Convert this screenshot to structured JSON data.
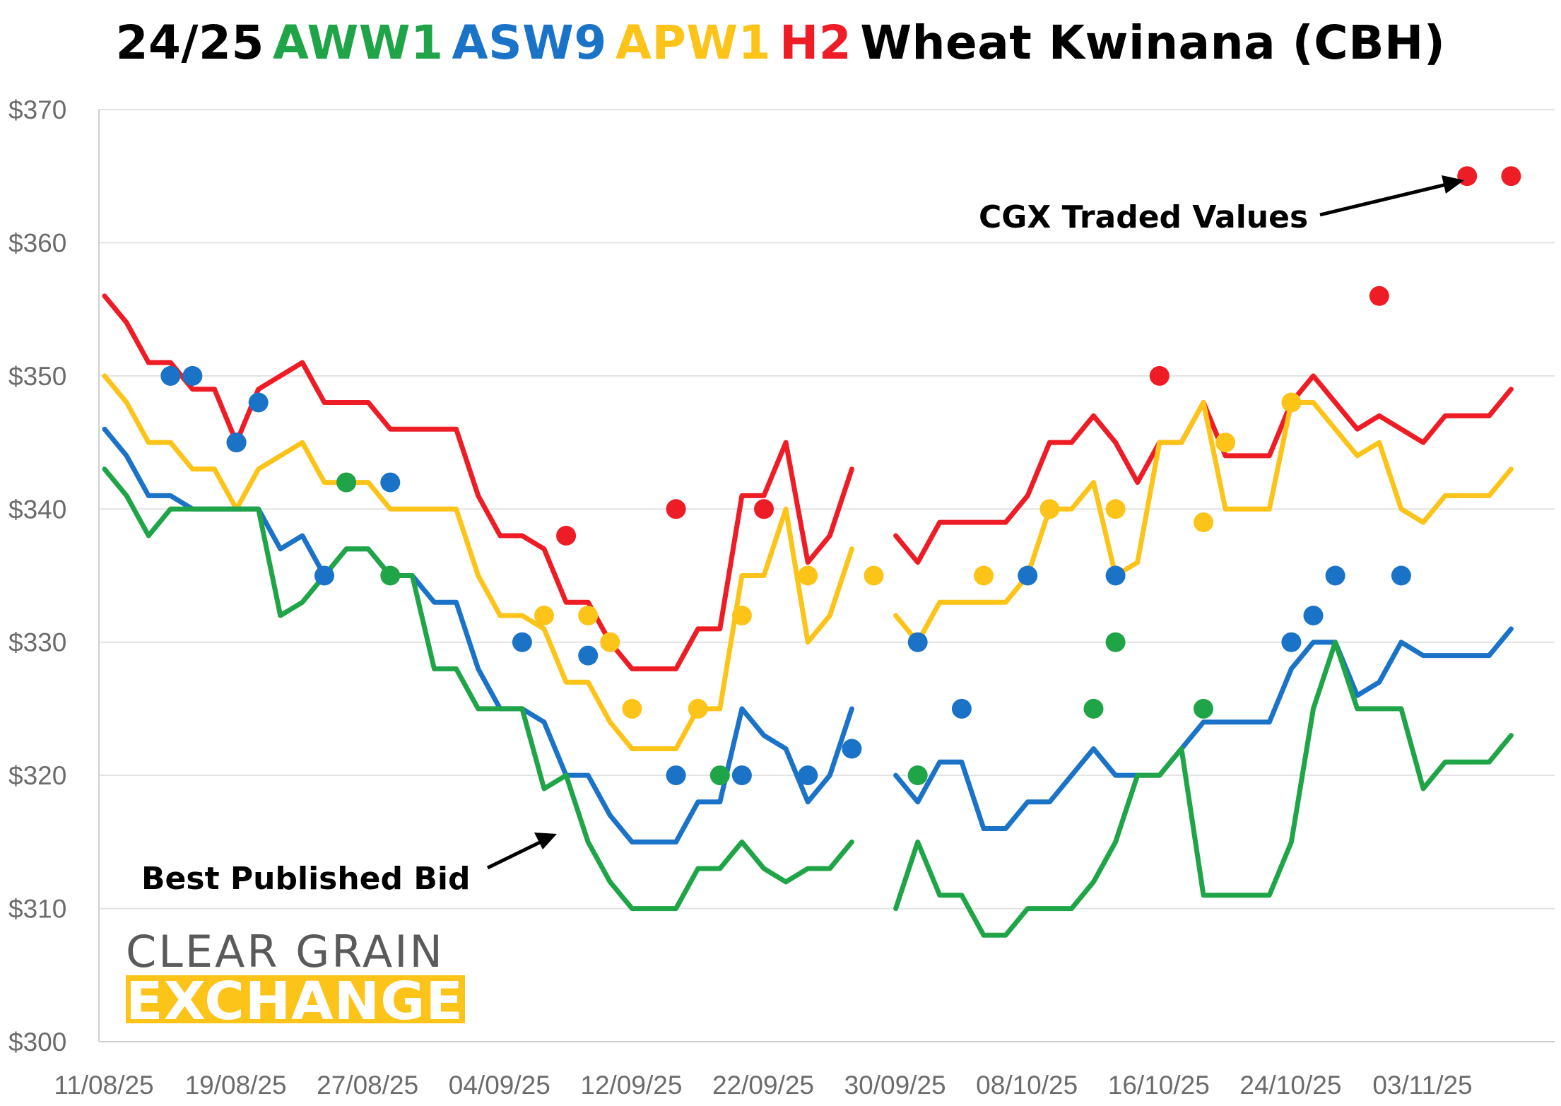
{
  "title": {
    "parts": [
      {
        "text": "24/25",
        "color": "#000000"
      },
      {
        "text": "AWW1",
        "color": "#1fa548"
      },
      {
        "text": "ASW9",
        "color": "#1b73c8"
      },
      {
        "text": "APW1",
        "color": "#fcc419"
      },
      {
        "text": "H2",
        "color": "#ee1c25"
      },
      {
        "text": "Wheat Kwinana (CBH)",
        "color": "#000000"
      }
    ]
  },
  "annotations": {
    "cgx": "CGX Traded Values",
    "bid": "Best Published Bid"
  },
  "logo": {
    "line1": "CLEAR GRAIN",
    "line2": "EXCHANGE",
    "accent": "#fcc419"
  },
  "chart_data": {
    "type": "line",
    "x_tick_labels": [
      "11/08/25",
      "19/08/25",
      "27/08/25",
      "04/09/25",
      "12/09/25",
      "22/09/25",
      "30/09/25",
      "08/10/25",
      "16/10/25",
      "24/10/25",
      "03/11/25"
    ],
    "y_tick_labels": [
      "$300",
      "$310",
      "$320",
      "$330",
      "$340",
      "$350",
      "$360",
      "$370"
    ],
    "ylim": [
      300,
      370
    ],
    "grid": true,
    "note_x": "x values are trading-day indices; tick labels fall on indices 0,6,12,18,24,30,36,42,48,54,60",
    "series": [
      {
        "color": "#ee1c25",
        "line": [
          [
            0,
            356
          ],
          [
            1,
            354
          ],
          [
            2,
            351
          ],
          [
            3,
            351
          ],
          [
            4,
            349
          ],
          [
            5,
            349
          ],
          [
            6,
            345
          ],
          [
            7,
            349
          ],
          [
            8,
            350
          ],
          [
            9,
            351
          ],
          [
            10,
            348
          ],
          [
            11,
            348
          ],
          [
            12,
            348
          ],
          [
            13,
            346
          ],
          [
            14,
            346
          ],
          [
            15,
            346
          ],
          [
            16,
            346
          ],
          [
            17,
            341
          ],
          [
            18,
            338
          ],
          [
            19,
            338
          ],
          [
            20,
            337
          ],
          [
            21,
            333
          ],
          [
            22,
            333
          ],
          [
            23,
            330
          ],
          [
            24,
            328
          ],
          [
            25,
            328
          ],
          [
            26,
            328
          ],
          [
            27,
            331
          ],
          [
            28,
            331
          ],
          [
            29,
            341
          ],
          [
            30,
            341
          ],
          [
            31,
            345
          ],
          [
            32,
            336
          ],
          [
            33,
            338
          ],
          [
            34,
            343
          ],
          [
            null,
            null
          ],
          [
            36,
            338
          ],
          [
            37,
            336
          ],
          [
            38,
            339
          ],
          [
            39,
            339
          ],
          [
            40,
            339
          ],
          [
            41,
            339
          ],
          [
            42,
            341
          ],
          [
            43,
            345
          ],
          [
            44,
            345
          ],
          [
            45,
            347
          ],
          [
            46,
            345
          ],
          [
            47,
            342
          ],
          [
            48,
            345
          ],
          [
            49,
            345
          ],
          [
            50,
            348
          ],
          [
            51,
            344
          ],
          [
            52,
            344
          ],
          [
            53,
            344
          ],
          [
            54,
            348
          ],
          [
            55,
            350
          ],
          [
            56,
            348
          ],
          [
            57,
            346
          ],
          [
            58,
            347
          ],
          [
            59,
            346
          ],
          [
            60,
            345
          ],
          [
            61,
            347
          ],
          [
            62,
            347
          ],
          [
            63,
            347
          ],
          [
            64,
            349
          ]
        ],
        "dots": [
          [
            6,
            345
          ],
          [
            21,
            338
          ],
          [
            26,
            340
          ],
          [
            30,
            340
          ],
          [
            48,
            350
          ],
          [
            58,
            356
          ],
          [
            62,
            365
          ],
          [
            64,
            365
          ]
        ]
      },
      {
        "color": "#fcc419",
        "line": [
          [
            0,
            350
          ],
          [
            1,
            348
          ],
          [
            2,
            345
          ],
          [
            3,
            345
          ],
          [
            4,
            343
          ],
          [
            5,
            343
          ],
          [
            6,
            340
          ],
          [
            7,
            343
          ],
          [
            8,
            344
          ],
          [
            9,
            345
          ],
          [
            10,
            342
          ],
          [
            11,
            342
          ],
          [
            12,
            342
          ],
          [
            13,
            340
          ],
          [
            14,
            340
          ],
          [
            15,
            340
          ],
          [
            16,
            340
          ],
          [
            17,
            335
          ],
          [
            18,
            332
          ],
          [
            19,
            332
          ],
          [
            20,
            331
          ],
          [
            21,
            327
          ],
          [
            22,
            327
          ],
          [
            23,
            324
          ],
          [
            24,
            322
          ],
          [
            25,
            322
          ],
          [
            26,
            322
          ],
          [
            27,
            325
          ],
          [
            28,
            325
          ],
          [
            29,
            335
          ],
          [
            30,
            335
          ],
          [
            31,
            340
          ],
          [
            32,
            330
          ],
          [
            33,
            332
          ],
          [
            34,
            337
          ],
          [
            null,
            null
          ],
          [
            36,
            332
          ],
          [
            37,
            330
          ],
          [
            38,
            333
          ],
          [
            39,
            333
          ],
          [
            40,
            333
          ],
          [
            41,
            333
          ],
          [
            42,
            335
          ],
          [
            43,
            340
          ],
          [
            44,
            340
          ],
          [
            45,
            342
          ],
          [
            46,
            335
          ],
          [
            47,
            336
          ],
          [
            48,
            345
          ],
          [
            49,
            345
          ],
          [
            50,
            348
          ],
          [
            51,
            340
          ],
          [
            52,
            340
          ],
          [
            53,
            340
          ],
          [
            54,
            348
          ],
          [
            55,
            348
          ],
          [
            56,
            346
          ],
          [
            57,
            344
          ],
          [
            58,
            345
          ],
          [
            59,
            340
          ],
          [
            60,
            339
          ],
          [
            61,
            341
          ],
          [
            62,
            341
          ],
          [
            63,
            341
          ],
          [
            64,
            343
          ]
        ],
        "dots": [
          [
            11,
            342
          ],
          [
            20,
            332
          ],
          [
            22,
            332
          ],
          [
            23,
            330
          ],
          [
            24,
            325
          ],
          [
            27,
            325
          ],
          [
            29,
            332
          ],
          [
            32,
            335
          ],
          [
            35,
            335
          ],
          [
            40,
            335
          ],
          [
            43,
            340
          ],
          [
            46,
            340
          ],
          [
            50,
            339
          ],
          [
            51,
            345
          ],
          [
            54,
            348
          ]
        ]
      },
      {
        "color": "#1b73c8",
        "line": [
          [
            0,
            346
          ],
          [
            1,
            344
          ],
          [
            2,
            341
          ],
          [
            3,
            341
          ],
          [
            4,
            340
          ],
          [
            5,
            340
          ],
          [
            6,
            340
          ],
          [
            7,
            340
          ],
          [
            8,
            337
          ],
          [
            9,
            338
          ],
          [
            10,
            335
          ],
          [
            11,
            337
          ],
          [
            12,
            337
          ],
          [
            13,
            335
          ],
          [
            14,
            335
          ],
          [
            15,
            333
          ],
          [
            16,
            333
          ],
          [
            17,
            328
          ],
          [
            18,
            325
          ],
          [
            19,
            325
          ],
          [
            20,
            324
          ],
          [
            21,
            320
          ],
          [
            22,
            320
          ],
          [
            23,
            317
          ],
          [
            24,
            315
          ],
          [
            25,
            315
          ],
          [
            26,
            315
          ],
          [
            27,
            318
          ],
          [
            28,
            318
          ],
          [
            29,
            325
          ],
          [
            30,
            323
          ],
          [
            31,
            322
          ],
          [
            32,
            318
          ],
          [
            33,
            320
          ],
          [
            34,
            325
          ],
          [
            null,
            null
          ],
          [
            36,
            320
          ],
          [
            37,
            318
          ],
          [
            38,
            321
          ],
          [
            39,
            321
          ],
          [
            40,
            316
          ],
          [
            41,
            316
          ],
          [
            42,
            318
          ],
          [
            43,
            318
          ],
          [
            44,
            320
          ],
          [
            45,
            322
          ],
          [
            46,
            320
          ],
          [
            47,
            320
          ],
          [
            48,
            320
          ],
          [
            49,
            322
          ],
          [
            50,
            324
          ],
          [
            51,
            324
          ],
          [
            52,
            324
          ],
          [
            53,
            324
          ],
          [
            54,
            328
          ],
          [
            55,
            330
          ],
          [
            56,
            330
          ],
          [
            57,
            326
          ],
          [
            58,
            327
          ],
          [
            59,
            330
          ],
          [
            60,
            329
          ],
          [
            61,
            329
          ],
          [
            62,
            329
          ],
          [
            63,
            329
          ],
          [
            64,
            331
          ]
        ],
        "dots": [
          [
            3,
            350
          ],
          [
            4,
            350
          ],
          [
            6,
            345
          ],
          [
            7,
            348
          ],
          [
            10,
            335
          ],
          [
            13,
            342
          ],
          [
            19,
            330
          ],
          [
            22,
            329
          ],
          [
            26,
            320
          ],
          [
            29,
            320
          ],
          [
            32,
            320
          ],
          [
            34,
            322
          ],
          [
            37,
            330
          ],
          [
            39,
            325
          ],
          [
            42,
            335
          ],
          [
            46,
            335
          ],
          [
            54,
            330
          ],
          [
            55,
            332
          ],
          [
            56,
            335
          ],
          [
            59,
            335
          ]
        ]
      },
      {
        "color": "#1fa548",
        "line": [
          [
            0,
            343
          ],
          [
            1,
            341
          ],
          [
            2,
            338
          ],
          [
            3,
            340
          ],
          [
            4,
            340
          ],
          [
            5,
            340
          ],
          [
            6,
            340
          ],
          [
            7,
            340
          ],
          [
            8,
            332
          ],
          [
            9,
            333
          ],
          [
            10,
            335
          ],
          [
            11,
            337
          ],
          [
            12,
            337
          ],
          [
            13,
            335
          ],
          [
            14,
            335
          ],
          [
            15,
            328
          ],
          [
            16,
            328
          ],
          [
            17,
            325
          ],
          [
            18,
            325
          ],
          [
            19,
            325
          ],
          [
            20,
            319
          ],
          [
            21,
            320
          ],
          [
            22,
            315
          ],
          [
            23,
            312
          ],
          [
            24,
            310
          ],
          [
            25,
            310
          ],
          [
            26,
            310
          ],
          [
            27,
            313
          ],
          [
            28,
            313
          ],
          [
            29,
            315
          ],
          [
            30,
            313
          ],
          [
            31,
            312
          ],
          [
            32,
            313
          ],
          [
            33,
            313
          ],
          [
            34,
            315
          ],
          [
            null,
            null
          ],
          [
            36,
            310
          ],
          [
            37,
            315
          ],
          [
            38,
            311
          ],
          [
            39,
            311
          ],
          [
            40,
            308
          ],
          [
            41,
            308
          ],
          [
            42,
            310
          ],
          [
            43,
            310
          ],
          [
            44,
            310
          ],
          [
            45,
            312
          ],
          [
            46,
            315
          ],
          [
            47,
            320
          ],
          [
            48,
            320
          ],
          [
            49,
            322
          ],
          [
            50,
            311
          ],
          [
            51,
            311
          ],
          [
            52,
            311
          ],
          [
            53,
            311
          ],
          [
            54,
            315
          ],
          [
            55,
            325
          ],
          [
            56,
            330
          ],
          [
            57,
            325
          ],
          [
            58,
            325
          ],
          [
            59,
            325
          ],
          [
            60,
            319
          ],
          [
            61,
            321
          ],
          [
            62,
            321
          ],
          [
            63,
            321
          ],
          [
            64,
            323
          ]
        ],
        "dots": [
          [
            11,
            342
          ],
          [
            13,
            335
          ],
          [
            28,
            320
          ],
          [
            37,
            320
          ],
          [
            45,
            325
          ],
          [
            46,
            330
          ],
          [
            50,
            325
          ]
        ]
      }
    ]
  }
}
